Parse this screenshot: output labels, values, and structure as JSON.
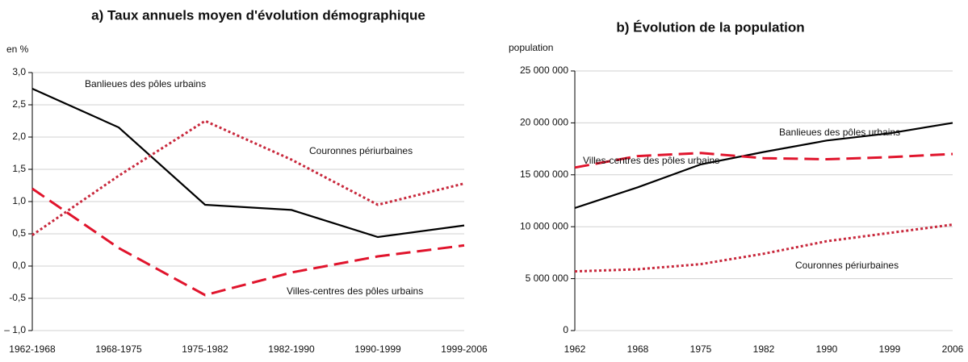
{
  "chart_data": [
    {
      "type": "line",
      "title": "a) Taux annuels moyen d'évolution démographique",
      "y_label": "en %",
      "categories": [
        "1962-1968",
        "1968-1975",
        "1975-1982",
        "1982-1990",
        "1990-1999",
        "1999-2006"
      ],
      "series": [
        {
          "name": "Banlieues des pôles urbains",
          "color": "#000000",
          "style": "solid",
          "values": [
            2.75,
            2.15,
            0.95,
            0.87,
            0.45,
            0.63
          ]
        },
        {
          "name": "Couronnes périurbaines",
          "color": "#c8283c",
          "style": "dotted",
          "values": [
            0.48,
            1.4,
            2.25,
            1.65,
            0.95,
            1.28
          ]
        },
        {
          "name": "Villes-centres des pôles urbains",
          "color": "#e0142c",
          "style": "dashed",
          "values": [
            1.2,
            0.28,
            -0.45,
            -0.1,
            0.15,
            0.32
          ]
        }
      ],
      "ylim": [
        -1,
        3
      ],
      "yticks": [
        {
          "value": -1,
          "label": "– 1,0"
        },
        {
          "value": -0.5,
          "label": "-0,5"
        },
        {
          "value": 0,
          "label": "0,0"
        },
        {
          "value": 0.5,
          "label": "0,5"
        },
        {
          "value": 1,
          "label": "1,0"
        },
        {
          "value": 1.5,
          "label": "1,5"
        },
        {
          "value": 2,
          "label": "2,0"
        },
        {
          "value": 2.5,
          "label": "2,5"
        },
        {
          "value": 3,
          "label": "3,0"
        }
      ],
      "grid": true
    },
    {
      "type": "line",
      "title": "b) Évolution de la population",
      "y_label": "population",
      "categories": [
        "1962",
        "1968",
        "1975",
        "1982",
        "1990",
        "1999",
        "2006"
      ],
      "series": [
        {
          "name": "Banlieues des pôles urbains",
          "color": "#000000",
          "style": "solid",
          "values": [
            11800000,
            13800000,
            16000000,
            17200000,
            18300000,
            19000000,
            20000000
          ]
        },
        {
          "name": "Villes-centres des pôles urbains",
          "color": "#e0142c",
          "style": "dashed",
          "values": [
            15700000,
            16800000,
            17100000,
            16600000,
            16500000,
            16700000,
            17000000
          ]
        },
        {
          "name": "Couronnes périurbaines",
          "color": "#c8283c",
          "style": "dotted",
          "values": [
            5700000,
            5900000,
            6400000,
            7400000,
            8600000,
            9400000,
            10200000
          ]
        }
      ],
      "ylim": [
        0,
        25000000
      ],
      "yticks": [
        0,
        {
          "value": 5000000,
          "label": "5 000 000"
        },
        {
          "value": 10000000,
          "label": "10 000 000"
        },
        {
          "value": 15000000,
          "label": "15 000 000"
        },
        {
          "value": 20000000,
          "label": "20 000 000"
        },
        {
          "value": 25000000,
          "label": "25 000 000"
        }
      ],
      "grid": true
    }
  ]
}
